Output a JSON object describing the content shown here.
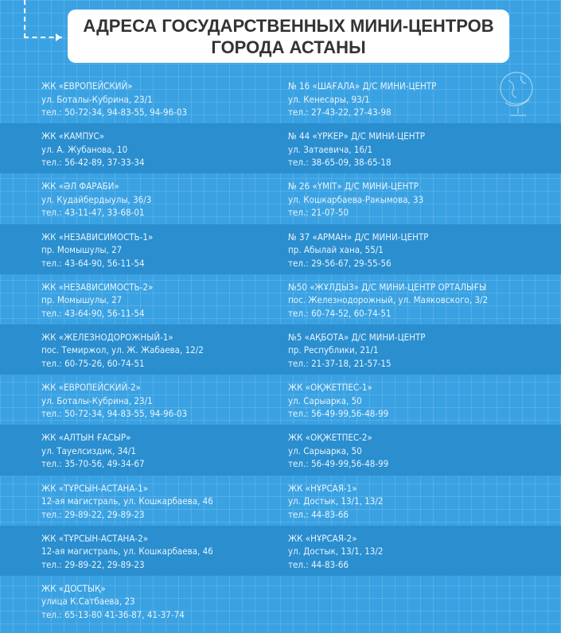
{
  "title": [
    "АДРЕСА ГОСУДАРСТВЕННЫХ МИНИ-ЦЕНТРОВ",
    "ГОРОДА АСТАНЫ"
  ],
  "colors": {
    "background": "#3aa2e2",
    "band": "#2a8ecf",
    "text": "#e8f4fc",
    "header_bg": "#ffffff",
    "header_text": "#333333"
  },
  "rows": [
    {
      "left": [
        "ЖК «ЕВРОПЕЙСКИЙ»",
        "ул. Боталы-Кубрина, 23/1",
        "тел.: 50-72-34, 94-83-55, 94-96-03"
      ],
      "right": [
        "№ 16 «ШАҒАЛА» Д/С МИНИ-ЦЕНТР",
        "ул. Кенесары, 93/1",
        "тел.: 27-43-22, 27-43-98"
      ]
    },
    {
      "left": [
        "ЖК «КАМПУС»",
        "ул. А. Жубанова, 10",
        "тел.: 56-42-89, 37-33-34"
      ],
      "right": [
        "№ 44 «ҮРКЕР» Д/С МИНИ-ЦЕНТР",
        "ул. Затаевича, 16/1",
        "тел.: 38-65-09, 38-65-18"
      ]
    },
    {
      "left": [
        "ЖК «ӘЛ ФАРАБИ»",
        "ул. Кудайбердыулы, 36/3",
        "тел.: 43-11-47, 33-68-01"
      ],
      "right": [
        "№ 26 «ҮМІТ» Д/С МИНИ-ЦЕНТР",
        "ул. Кошкарбаева-Ракымова, 33",
        "тел.: 21-07-50"
      ]
    },
    {
      "left": [
        "ЖК «НЕЗАВИСИМОСТЬ-1»",
        "пр. Момышулы, 27",
        "тел.: 43-64-90, 56-11-54"
      ],
      "right": [
        "№ 37 «АРМАН» Д/С МИНИ-ЦЕНТР",
        "пр. Абылай хана, 55/1",
        "тел.: 29-56-67, 29-55-56"
      ]
    },
    {
      "left": [
        "ЖК «НЕЗАВИСИМОСТЬ-2»",
        "пр. Момышулы, 27",
        "тел.: 43-64-90, 56-11-54"
      ],
      "right": [
        "№50 «ЖҰЛДЫЗ» Д/С МИНИ-ЦЕНТР ОРТАЛЫҒЫ",
        "пос. Железнодорожный, ул. Маяковского, 3/2",
        "тел.: 60-74-52, 60-74-51"
      ]
    },
    {
      "left": [
        "ЖК «ЖЕЛЕЗНОДОРОЖНЫЙ-1»",
        "пос. Темиржол, ул. Ж. Жабаева, 12/2",
        "тел.: 60-75-26, 60-74-51"
      ],
      "right": [
        "№5 «АҚБОТА» Д/С МИНИ-ЦЕНТР",
        "пр. Республики, 21/1",
        "тел.: 21-37-18, 21-57-15"
      ]
    },
    {
      "left": [
        "ЖК «ЕВРОПЕЙСКИЙ-2»",
        "ул. Боталы-Кубрина, 23/1",
        "тел.: 50-72-34, 94-83-55, 94-96-03"
      ],
      "right": [
        "ЖК «ОҚЖЕТПЕС-1»",
        "ул. Сарыарка, 50",
        "тел.: 56-49-99,56-48-99"
      ]
    },
    {
      "left": [
        "ЖК «АЛТЫН ҒАСЫР»",
        "ул. Тауелсиздик, 34/1",
        "тел.: 35-70-56, 49-34-67"
      ],
      "right": [
        "ЖК  «ОҚЖЕТПЕС-2»",
        "ул. Сарыарка, 50",
        "тел.: 56-49-99,56-48-99"
      ]
    },
    {
      "left": [
        "ЖК  «ТҰРСЫН-АСТАНА-1»",
        "12-ая магистраль, ул. Кошкарбаева, 46",
        "тел.: 29-89-22, 29-89-23"
      ],
      "right": [
        "ЖК  «НҰРСАЯ-1»",
        "ул. Достык, 13/1, 13/2",
        "тел.: 44-83-66"
      ]
    },
    {
      "left": [
        "ЖК «ТҰРСЫН-АСТАНА-2»",
        "12-ая магистраль, ул. Кошкарбаева, 46",
        "тел.: 29-89-22, 29-89-23"
      ],
      "right": [
        "ЖК  «НҰРСАЯ-2»",
        "ул. Достык, 13/1, 13/2",
        "тел.: 44-83-66"
      ]
    },
    {
      "left": [
        "ЖК «ДОСТЫҚ»",
        "улица К.Сатбаева, 23",
        "тел.: 65-13-80  41-36-87, 41-37-74"
      ],
      "right": null
    }
  ]
}
